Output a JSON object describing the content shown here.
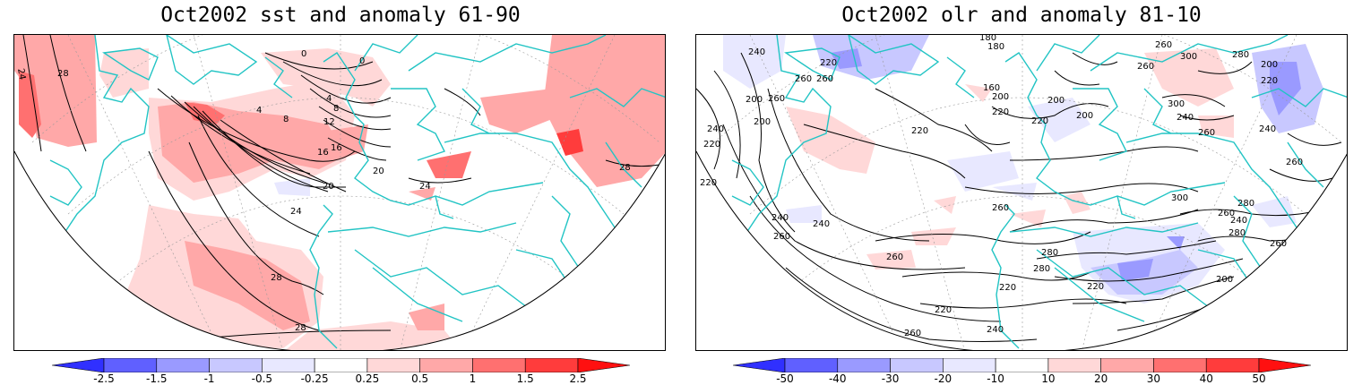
{
  "panels": [
    {
      "id": "sst",
      "title": "Oct2002 sst and anomaly 61-90",
      "contour_labels": [
        "24",
        "28",
        "0",
        "0",
        "4",
        "4",
        "8",
        "8",
        "12",
        "16",
        "16",
        "20",
        "20",
        "24",
        "24",
        "28",
        "28",
        "28"
      ],
      "colorbar": {
        "ticks": [
          "-2.5",
          "-1.5",
          "-1",
          "-0.5",
          "-0.25",
          "0.25",
          "0.5",
          "1",
          "1.5",
          "2.5"
        ],
        "colors": [
          "#3030ff",
          "#6060ff",
          "#9a9aff",
          "#c8c8ff",
          "#e8e8ff",
          "#ffffff",
          "#ffd8d8",
          "#ffa8a8",
          "#ff7070",
          "#ff3c3c",
          "#ff1010"
        ]
      }
    },
    {
      "id": "olr",
      "title": "Oct2002 olr and anomaly 81-10",
      "contour_labels": [
        "240",
        "220",
        "260",
        "260",
        "260",
        "200",
        "180",
        "180",
        "160",
        "200",
        "200",
        "220",
        "220",
        "200",
        "220",
        "240",
        "200",
        "220",
        "300",
        "260",
        "260",
        "300",
        "280",
        "200",
        "220",
        "240",
        "260",
        "240",
        "220",
        "260",
        "240",
        "260",
        "240",
        "260",
        "280",
        "300",
        "260",
        "280",
        "280",
        "220",
        "200",
        "220",
        "220",
        "260",
        "240",
        "260",
        "240",
        "280",
        "260"
      ],
      "colorbar": {
        "ticks": [
          "-50",
          "-40",
          "-30",
          "-20",
          "-10",
          "10",
          "20",
          "30",
          "40",
          "50"
        ],
        "colors": [
          "#3030ff",
          "#6060ff",
          "#9a9aff",
          "#c8c8ff",
          "#e8e8ff",
          "#ffffff",
          "#ffd8d8",
          "#ffa8a8",
          "#ff7070",
          "#ff3c3c",
          "#ff1010"
        ]
      }
    }
  ]
}
